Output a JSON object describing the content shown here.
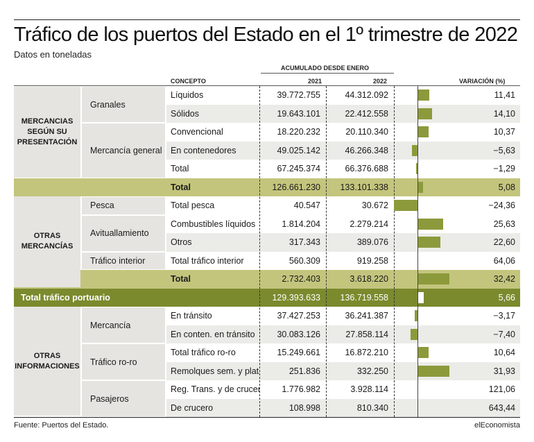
{
  "title": "Tráfico de los puertos del Estado en el 1º trimestre de 2022",
  "subtitle": "Datos en toneladas",
  "headers": {
    "concepto": "CONCEPTO",
    "acumulado": "ACUMULADO DESDE ENERO",
    "y2021": "2021",
    "y2022": "2022",
    "variacion": "VARIACIÓN (%)"
  },
  "groups": [
    {
      "label": "MERCANCIAS SEGÚN SU PRESENTACIÓN"
    },
    {
      "label": "OTRAS MERCANCÍAS"
    },
    {
      "label": "OTRAS INFORMACIONES"
    }
  ],
  "subgroups": [
    {
      "label": "Granales"
    },
    {
      "label": "Mercancía general"
    },
    {
      "label": "Pesca"
    },
    {
      "label": "Avituallamiento"
    },
    {
      "label": "Tráfico interior"
    },
    {
      "label": "Mercancía"
    },
    {
      "label": "Tráfico ro-ro"
    },
    {
      "label": "Pasajeros"
    }
  ],
  "rows": [
    {
      "concept": "Líquidos",
      "v2021": "39.772.755",
      "v2022": "44.312.092",
      "var": "11,41",
      "var_value": 11.41
    },
    {
      "concept": "Sólidos",
      "v2021": "19.643.101",
      "v2022": "22.412.558",
      "var": "14,10",
      "var_value": 14.1
    },
    {
      "concept": "Convencional",
      "v2021": "18.220.232",
      "v2022": "20.110.340",
      "var": "10,37",
      "var_value": 10.37
    },
    {
      "concept": "En contenedores",
      "v2021": "49.025.142",
      "v2022": "46.266.348",
      "var": "−5,63",
      "var_value": -5.63
    },
    {
      "concept": "Total",
      "v2021": "67.245.374",
      "v2022": "66.376.688",
      "var": "−1,29",
      "var_value": -1.29
    },
    {
      "concept": "Total",
      "v2021": "126.661.230",
      "v2022": "133.101.338",
      "var": "5,08",
      "var_value": 5.08
    },
    {
      "concept": "Total pesca",
      "v2021": "40.547",
      "v2022": "30.672",
      "var": "−24,36",
      "var_value": -24.36
    },
    {
      "concept": "Combustibles líquidos",
      "v2021": "1.814.204",
      "v2022": "2.279.214",
      "var": "25,63",
      "var_value": 25.63
    },
    {
      "concept": "Otros",
      "v2021": "317.343",
      "v2022": "389.076",
      "var": "22,60",
      "var_value": 22.6
    },
    {
      "concept": "Total tráfico interior",
      "v2021": "560.309",
      "v2022": "919.258",
      "var": "64,06",
      "var_value": 64.06
    },
    {
      "concept": "Total",
      "v2021": "2.732.403",
      "v2022": "3.618.220",
      "var": "32,42",
      "var_value": 32.42
    },
    {
      "concept": "Total tráfico portuario",
      "v2021": "129.393.633",
      "v2022": "136.719.558",
      "var": "5,66",
      "var_value": 5.66
    },
    {
      "concept": "En tránsito",
      "v2021": "37.427.253",
      "v2022": "36.241.387",
      "var": "−3,17",
      "var_value": -3.17
    },
    {
      "concept": "En conten. en tránsito",
      "v2021": "30.083.126",
      "v2022": "27.858.114",
      "var": "−7,40",
      "var_value": -7.4
    },
    {
      "concept": "Total tráfico ro-ro",
      "v2021": "15.249.661",
      "v2022": "16.872.210",
      "var": "10,64",
      "var_value": 10.64
    },
    {
      "concept": "Remolques sem. y plata.",
      "v2021": "251.836",
      "v2022": "332.250",
      "var": "31,93",
      "var_value": 31.93
    },
    {
      "concept": "Reg. Trans. y de crucero",
      "v2021": "1.776.982",
      "v2022": "3.928.114",
      "var": "121,06",
      "var_value": 121.06
    },
    {
      "concept": "De crucero",
      "v2021": "108.998",
      "v2022": "810.340",
      "var": "643,44",
      "var_value": 643.44
    }
  ],
  "colors": {
    "bar": "#8c9a3b",
    "total_row": "#c3c57d",
    "portuario_row": "#7b8a2d",
    "group_bg": "#e5e4e0",
    "alt_row": "#ebebe7"
  },
  "footer": {
    "source": "Fuente: Puertos del Estado.",
    "brand": "elEconomista"
  }
}
